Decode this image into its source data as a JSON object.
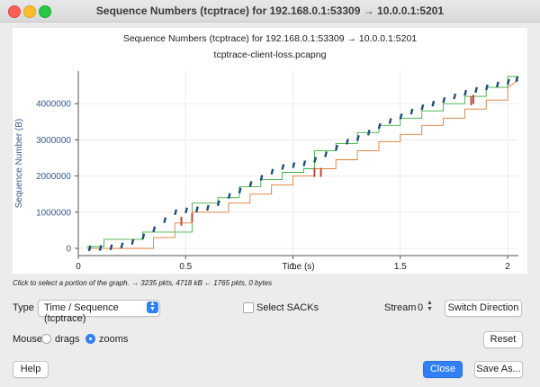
{
  "window": {
    "title": "Sequence Numbers (tcptrace) for 192.168.0.1:53309 → 10.0.0.1:5201"
  },
  "colors": {
    "accent": "#2f7ff6",
    "series_data": "#1f4e79",
    "series_window": "#3cb043",
    "series_ack": "#e07b39",
    "series_sack": "#c0392b",
    "axis_text": "#3a5a8c"
  },
  "chart_data": {
    "type": "line",
    "title": "Sequence Numbers (tcptrace) for 192.168.0.1:53309 → 10.0.0.1:5201",
    "subtitle": "tcptrace-client-loss.pcapng",
    "xlabel": "Time (s)",
    "ylabel": "Sequence Number (B)",
    "xlim": [
      0,
      2.05
    ],
    "ylim": [
      -200000,
      4900000
    ],
    "x_ticks": [
      0,
      0.5,
      1,
      1.5,
      2
    ],
    "x_tick_labels": [
      "0",
      "0.5",
      "1",
      "1.5",
      "2"
    ],
    "y_ticks": [
      0,
      1000000,
      2000000,
      3000000,
      4000000
    ],
    "y_tick_labels": [
      "0",
      "1000000",
      "2000000",
      "3000000",
      "4000000"
    ],
    "grid": true,
    "series": [
      {
        "x": [
          0.04,
          0.12,
          0.12,
          0.3,
          0.3,
          0.53,
          0.53,
          0.65,
          0.65,
          0.75,
          0.75,
          0.85,
          0.85,
          0.95,
          0.95,
          1.05,
          1.05,
          1.1,
          1.1,
          1.2,
          1.2,
          1.3,
          1.3,
          1.4,
          1.4,
          1.5,
          1.5,
          1.6,
          1.6,
          1.7,
          1.7,
          1.8,
          1.8,
          1.9,
          1.9,
          2.0,
          2.0,
          2.05
        ],
        "y": [
          50000,
          50000,
          250000,
          250000,
          450000,
          450000,
          1250000,
          1250000,
          1400000,
          1400000,
          1700000,
          1700000,
          1900000,
          1900000,
          2100000,
          2100000,
          2200000,
          2200000,
          2700000,
          2700000,
          2900000,
          2900000,
          3200000,
          3200000,
          3400000,
          3400000,
          3600000,
          3600000,
          3800000,
          3800000,
          4000000,
          4000000,
          4200000,
          4200000,
          4450000,
          4450000,
          4750000,
          4750000
        ]
      },
      {
        "x": [
          0.04,
          0.35,
          0.35,
          0.45,
          0.45,
          0.53,
          0.53,
          0.7,
          0.7,
          0.8,
          0.8,
          0.9,
          0.9,
          1.0,
          1.0,
          1.1,
          1.1,
          1.2,
          1.2,
          1.3,
          1.3,
          1.4,
          1.4,
          1.5,
          1.5,
          1.6,
          1.6,
          1.7,
          1.7,
          1.8,
          1.8,
          1.9,
          1.9,
          2.0,
          2.0,
          2.05
        ],
        "y": [
          0,
          0,
          300000,
          300000,
          700000,
          700000,
          1000000,
          1000000,
          1250000,
          1250000,
          1500000,
          1500000,
          1750000,
          1750000,
          2000000,
          2000000,
          2200000,
          2200000,
          2450000,
          2450000,
          2700000,
          2700000,
          2950000,
          2950000,
          3150000,
          3150000,
          3400000,
          3400000,
          3600000,
          3600000,
          3850000,
          3850000,
          4100000,
          4100000,
          4450000,
          4650000
        ]
      },
      {
        "x": [
          0.05,
          0.1,
          0.15,
          0.2,
          0.25,
          0.3,
          0.35,
          0.4,
          0.45,
          0.5,
          0.55,
          0.6,
          0.65,
          0.7,
          0.75,
          0.8,
          0.85,
          0.9,
          0.95,
          1.0,
          1.05,
          1.1,
          1.15,
          1.2,
          1.25,
          1.3,
          1.35,
          1.4,
          1.45,
          1.5,
          1.55,
          1.6,
          1.65,
          1.7,
          1.75,
          1.8,
          1.85,
          1.9,
          1.95,
          2.0,
          2.04
        ],
        "y": [
          0,
          10000,
          30000,
          80000,
          180000,
          330000,
          530000,
          780000,
          1000000,
          1050000,
          1080000,
          1120000,
          1250000,
          1450000,
          1600000,
          1780000,
          1950000,
          2120000,
          2250000,
          2300000,
          2350000,
          2450000,
          2600000,
          2780000,
          2950000,
          3050000,
          3200000,
          3380000,
          3520000,
          3650000,
          3780000,
          3900000,
          4000000,
          4100000,
          4200000,
          4300000,
          4380000,
          4450000,
          4530000,
          4600000,
          4680000
        ]
      },
      {
        "x": [
          0.48,
          0.53,
          1.1,
          1.13,
          1.83,
          1.84
        ],
        "y": [
          750000,
          850000,
          2100000,
          2100000,
          4080000,
          4120000
        ]
      }
    ]
  },
  "status_bar": {
    "text": "Click to select a portion of the graph. → 3235 pkts, 4718 kB ← 1765 pkts, 0 bytes"
  },
  "controls": {
    "type_label": "Type",
    "type_value": "Time / Sequence (tcptrace)",
    "select_sacks_label": "Select SACKs",
    "stream_label": "Stream",
    "stream_value": "0",
    "switch_direction_label": "Switch Direction",
    "mouse_label": "Mouse",
    "drags_label": "drags",
    "zooms_label": "zooms",
    "reset_label": "Reset",
    "help_label": "Help",
    "close_label": "Close",
    "save_as_label": "Save As..."
  }
}
